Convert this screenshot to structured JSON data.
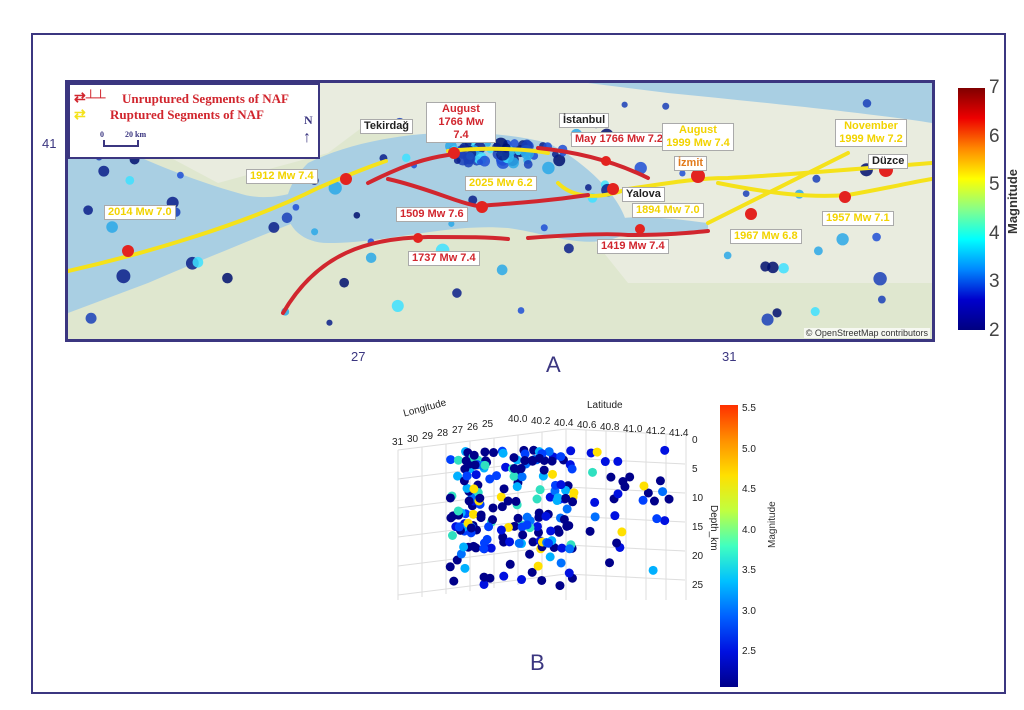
{
  "panel_a": {
    "label": "A",
    "legend": {
      "unruptured": "Unruptured Segments of NAF",
      "ruptured": "Ruptured Segments of NAF",
      "scale_0": "0",
      "scale_20": "20 km",
      "north": "N"
    },
    "cities": [
      "Tekirdağ",
      "İstanbul",
      "İzmit",
      "Yalova",
      "Düzce"
    ],
    "events_red": [
      "August 1766 Mw 7.4",
      "May 1766 Mw 7.2",
      "1509 Mw 7.6",
      "1737 Mw 7.4",
      "1419 Mw 7.4"
    ],
    "events_yellow": [
      "1912 Mw 7.4",
      "2014 Mw 7.0",
      "2025 Mw 6.2",
      "August 1999 Mw 7.4",
      "November 1999 Mw 7.2",
      "1894 Mw 7.0",
      "1967 Mw 6.8",
      "1957 Mw 7.1"
    ],
    "lat_tick": "41",
    "lon_ticks": [
      "27",
      "31"
    ],
    "attribution": "© OpenStreetMap contributors",
    "colorbar": {
      "title": "Magnitude",
      "ticks": [
        "7",
        "6",
        "5",
        "4",
        "3",
        "2"
      ],
      "range": [
        2,
        7
      ]
    }
  },
  "panel_b": {
    "label": "B",
    "longitude_label": "Longitude",
    "latitude_label": "Latitude",
    "depth_label": "Depth_km",
    "longitude_ticks": [
      "31",
      "30",
      "29",
      "28",
      "27",
      "26",
      "25"
    ],
    "latitude_ticks": [
      "40.0",
      "40.2",
      "40.4",
      "40.6",
      "40.8",
      "41.0",
      "41.2",
      "41.4"
    ],
    "depth_ticks": [
      "0",
      "5",
      "10",
      "15",
      "20",
      "25"
    ],
    "colorbar": {
      "title": "Magnitude",
      "ticks": [
        "5.5",
        "5.0",
        "4.5",
        "4.0",
        "3.5",
        "3.0",
        "2.5"
      ],
      "range": [
        2.1,
        5.55
      ]
    }
  },
  "colors": {
    "frame": "#3b3680",
    "unruptured": "#d1262e",
    "ruptured": "#f5e21a"
  }
}
